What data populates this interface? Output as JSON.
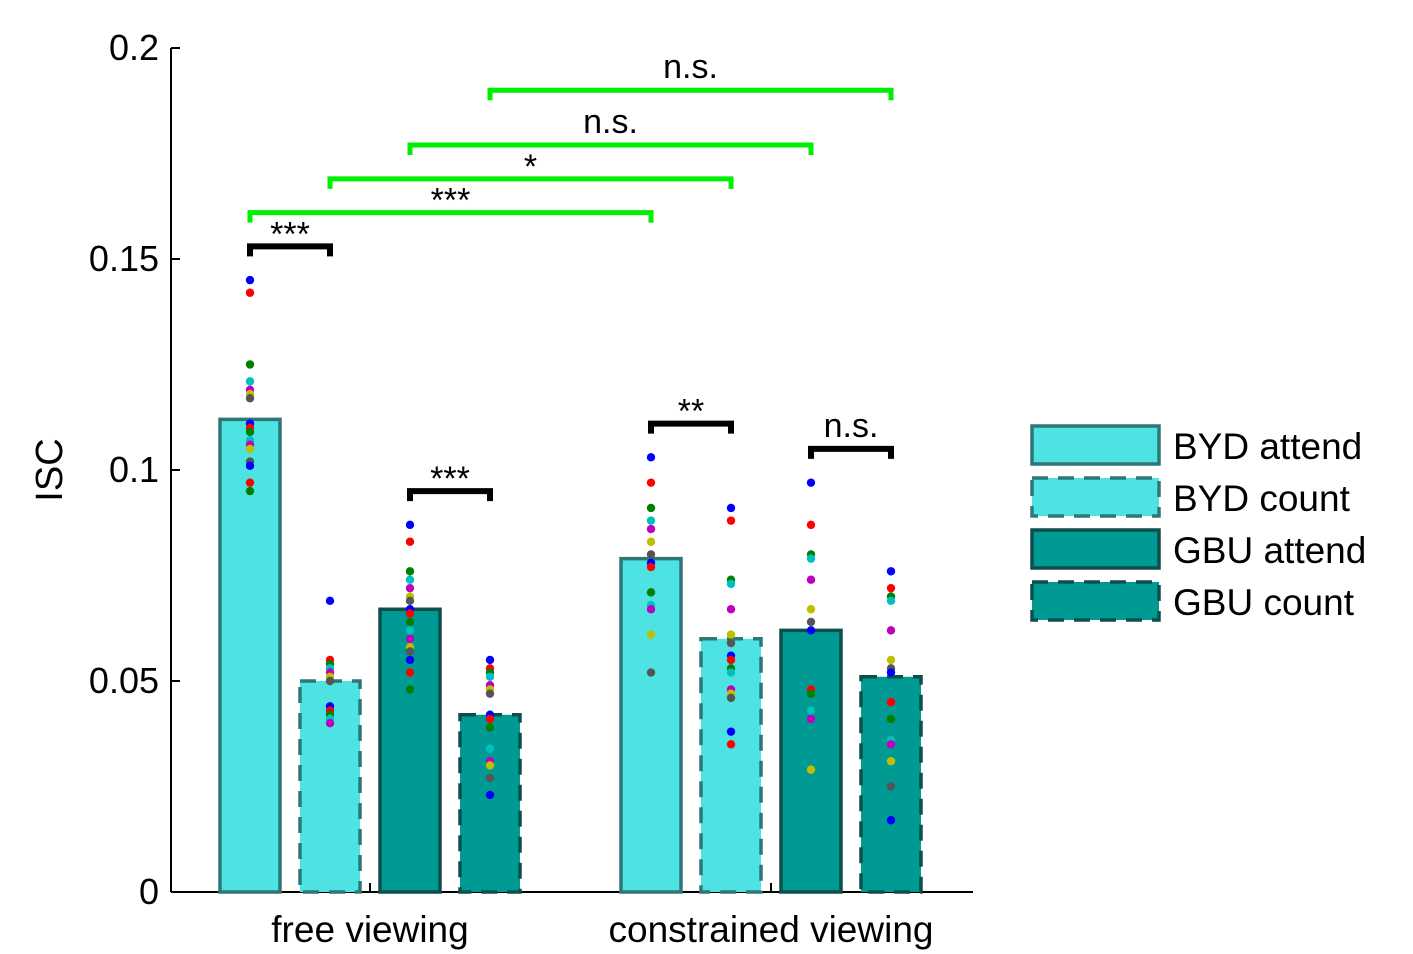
{
  "chart_data": {
    "type": "bar",
    "ylabel": "ISC",
    "xlabel": "",
    "ylim": [
      0,
      0.2
    ],
    "yticks": [
      {
        "value": 0,
        "label": "0"
      },
      {
        "value": 0.05,
        "label": "0.05"
      },
      {
        "value": 0.1,
        "label": "0.1"
      },
      {
        "value": 0.15,
        "label": "0.15"
      },
      {
        "value": 0.2,
        "label": "0.2"
      }
    ],
    "categories": [
      "free viewing",
      "constrained viewing"
    ],
    "legend_position": "right",
    "colors": {
      "byd": "#4de3e3",
      "gbu": "#009a94",
      "byd_edge": "#2f7676",
      "gbu_edge": "#0e4f4c",
      "within_bracket": "#000000",
      "between_bracket": "#00ee00"
    },
    "series": [
      {
        "name": "BYD attend",
        "color": "#4de3e3",
        "edge": "solid",
        "values": [
          0.112,
          0.079
        ],
        "points": [
          [
            0.145,
            0.142,
            0.125,
            0.121,
            0.119,
            0.118,
            0.117,
            0.111,
            0.11,
            0.109,
            0.107,
            0.106,
            0.105,
            0.102,
            0.101,
            0.097,
            0.095
          ],
          [
            0.103,
            0.097,
            0.091,
            0.088,
            0.086,
            0.083,
            0.08,
            0.078,
            0.077,
            0.071,
            0.068,
            0.067,
            0.061,
            0.052
          ]
        ]
      },
      {
        "name": "BYD count",
        "color": "#4de3e3",
        "edge": "dashed",
        "values": [
          0.05,
          0.06
        ],
        "points": [
          [
            0.069,
            0.055,
            0.054,
            0.053,
            0.052,
            0.051,
            0.05,
            0.044,
            0.043,
            0.042,
            0.041,
            0.04
          ],
          [
            0.091,
            0.088,
            0.074,
            0.073,
            0.067,
            0.061,
            0.059,
            0.056,
            0.055,
            0.053,
            0.052,
            0.048,
            0.047,
            0.046,
            0.038,
            0.035
          ]
        ]
      },
      {
        "name": "GBU attend",
        "color": "#009a94",
        "edge": "solid",
        "values": [
          0.067,
          0.062
        ],
        "points": [
          [
            0.087,
            0.083,
            0.076,
            0.074,
            0.072,
            0.07,
            0.069,
            0.067,
            0.066,
            0.064,
            0.062,
            0.06,
            0.058,
            0.057,
            0.055,
            0.052,
            0.048
          ],
          [
            0.097,
            0.087,
            0.08,
            0.079,
            0.074,
            0.067,
            0.064,
            0.062,
            0.048,
            0.047,
            0.043,
            0.041,
            0.029
          ]
        ]
      },
      {
        "name": "GBU count",
        "color": "#009a94",
        "edge": "dashed",
        "values": [
          0.042,
          0.051
        ],
        "points": [
          [
            0.055,
            0.053,
            0.052,
            0.051,
            0.049,
            0.048,
            0.047,
            0.042,
            0.041,
            0.039,
            0.034,
            0.031,
            0.03,
            0.027,
            0.023
          ],
          [
            0.076,
            0.072,
            0.07,
            0.069,
            0.062,
            0.055,
            0.053,
            0.052,
            0.045,
            0.041,
            0.036,
            0.035,
            0.031,
            0.025,
            0.017
          ]
        ]
      }
    ],
    "point_colors": [
      "#0000ff",
      "#ff0000",
      "#008000",
      "#00bfbf",
      "#bf00bf",
      "#bfbf00",
      "#555555"
    ],
    "annotations": [
      {
        "from": [
          0,
          0
        ],
        "to": [
          0,
          1
        ],
        "y": 0.153,
        "label": "***",
        "color": "black"
      },
      {
        "from": [
          0,
          2
        ],
        "to": [
          0,
          3
        ],
        "y": 0.095,
        "label": "***",
        "color": "black"
      },
      {
        "from": [
          1,
          0
        ],
        "to": [
          1,
          1
        ],
        "y": 0.111,
        "label": "**",
        "color": "black"
      },
      {
        "from": [
          1,
          2
        ],
        "to": [
          1,
          3
        ],
        "y": 0.105,
        "label": "n.s.",
        "color": "black"
      },
      {
        "from": [
          0,
          0
        ],
        "to": [
          1,
          0
        ],
        "y": 0.161,
        "label": "***",
        "color": "green"
      },
      {
        "from": [
          0,
          1
        ],
        "to": [
          1,
          1
        ],
        "y": 0.169,
        "label": "*",
        "color": "green"
      },
      {
        "from": [
          0,
          2
        ],
        "to": [
          1,
          2
        ],
        "y": 0.177,
        "label": "n.s.",
        "color": "green"
      },
      {
        "from": [
          0,
          3
        ],
        "to": [
          1,
          3
        ],
        "y": 0.19,
        "label": "n.s.",
        "color": "green"
      }
    ]
  }
}
